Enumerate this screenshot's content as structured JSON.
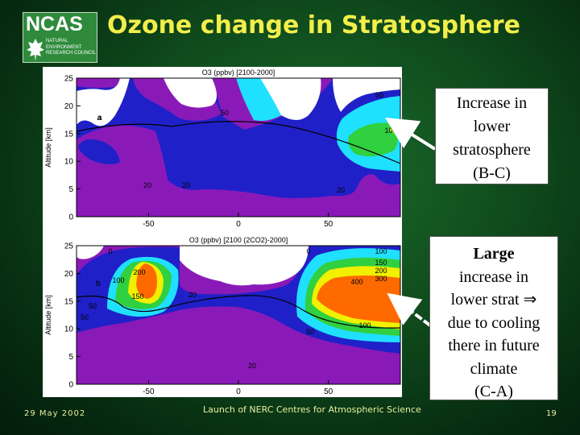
{
  "logo": {
    "word": "NCAS",
    "sub": [
      "NATURAL",
      "ENVIRONMENT",
      "RESEARCH COUNCIL"
    ]
  },
  "title": "Ozone change in Stratosphere",
  "chart_data": [
    {
      "type": "heatmap",
      "title": "O3 (ppbv) [2100-2000]",
      "ylabel": "Altitude [km]",
      "xlim": [
        -90,
        90
      ],
      "ylim": [
        0,
        25
      ],
      "x_ticks": [
        -50,
        0,
        50
      ],
      "y_ticks": [
        0,
        5,
        10,
        15,
        20,
        25
      ],
      "contour_labels": [
        "a",
        "50",
        "20",
        "20",
        "20",
        "50",
        "100"
      ],
      "annotations": [
        "a"
      ]
    },
    {
      "type": "heatmap",
      "title": "O3 (ppbv) [2100 (2CO2)-2000]",
      "ylabel": "Altitude [km]",
      "xlim": [
        -90,
        90
      ],
      "ylim": [
        0,
        25
      ],
      "x_ticks": [
        -50,
        0,
        50
      ],
      "y_ticks": [
        0,
        5,
        10,
        15,
        20,
        25
      ],
      "contour_labels": [
        "0",
        "200",
        "100",
        "150",
        "50",
        "50",
        "20",
        "100",
        "150",
        "200",
        "300",
        "400",
        "100",
        "50",
        "20",
        "0"
      ],
      "annotations": [
        "b"
      ]
    }
  ],
  "callouts": {
    "top": [
      "Increase in",
      "lower",
      "stratosphere",
      "(B-C)"
    ],
    "bottom_bold": "Large",
    "bottom": [
      "increase in",
      "lower strat ⇒",
      "due to cooling",
      "there in future",
      "climate",
      "(C-A)"
    ]
  },
  "footer": {
    "date": "29 May 2002",
    "center": "Launch of NERC Centres for Atmospheric Science",
    "page": "19"
  },
  "colors": {
    "title": "#f2ee4a",
    "footer": "#e8f0a0",
    "purple": "#8a1ab8",
    "blue": "#2020c8",
    "cyan": "#20e0ff",
    "green": "#30d040",
    "yellow": "#f0f000",
    "orange": "#ff6a00"
  }
}
